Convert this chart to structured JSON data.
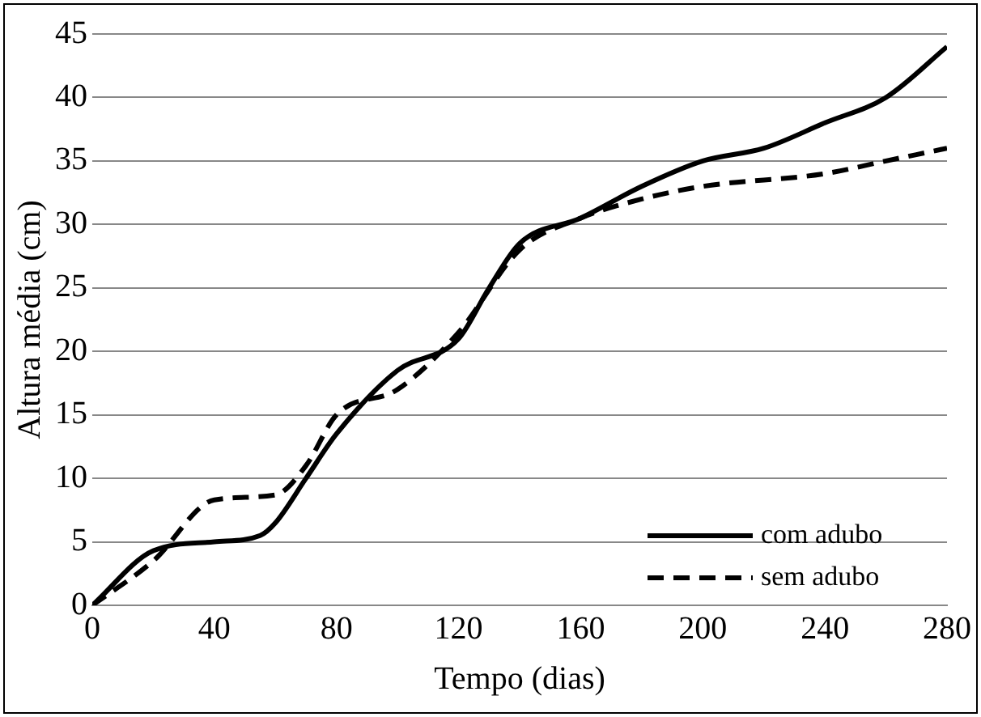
{
  "chart_data": {
    "type": "line",
    "xlabel": "Tempo (dias)",
    "ylabel": "Altura média (cm)",
    "xlim": [
      0,
      280
    ],
    "xticks": [
      0,
      40,
      80,
      120,
      160,
      200,
      240,
      280
    ],
    "ylim": [
      0,
      45
    ],
    "yticks": [
      0,
      5,
      10,
      15,
      20,
      25,
      30,
      35,
      40,
      45
    ],
    "grid": "y",
    "legend": "bottom right",
    "marker": "none",
    "series": [
      {
        "name": "com adubo",
        "color": "#000000",
        "line_style": "solid",
        "x": [
          0,
          20,
          40,
          55,
          60,
          70,
          80,
          100,
          120,
          130,
          140,
          160,
          180,
          200,
          220,
          240,
          260,
          280
        ],
        "values": [
          0,
          4.3,
          5,
          5.5,
          6.5,
          10,
          13.5,
          18.5,
          21,
          25,
          28.5,
          30.5,
          33,
          35,
          36,
          38,
          40,
          44
        ]
      },
      {
        "name": "sem adubo",
        "color": "#000000",
        "line_style": "dashed",
        "x": [
          0,
          20,
          40,
          60,
          70,
          80,
          100,
          120,
          140,
          160,
          180,
          200,
          240,
          260,
          280
        ],
        "values": [
          0,
          3.5,
          8.3,
          8.7,
          11,
          15,
          17,
          21.5,
          28,
          30.5,
          32,
          33,
          34,
          35,
          36
        ]
      }
    ]
  }
}
